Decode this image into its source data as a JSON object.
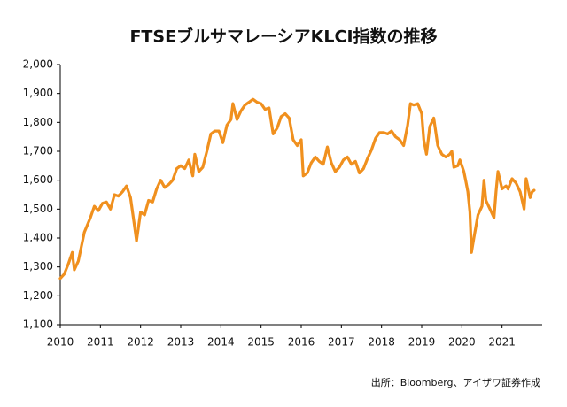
{
  "chart_data": {
    "type": "line",
    "title": "FTSEブルサマレーシアKLCI指数の推移",
    "source": "出所：Bloomberg、アイザワ証券作成",
    "xlim": [
      2010,
      2022
    ],
    "xticks": [
      2010,
      2011,
      2012,
      2013,
      2014,
      2015,
      2016,
      2017,
      2018,
      2019,
      2020,
      2021
    ],
    "ylim": [
      1100,
      2000
    ],
    "yticks": [
      {
        "value": 1100,
        "label": "1,100"
      },
      {
        "value": 1200,
        "label": "1,200"
      },
      {
        "value": 1300,
        "label": "1,300"
      },
      {
        "value": 1400,
        "label": "1,400"
      },
      {
        "value": 1500,
        "label": "1,500"
      },
      {
        "value": 1600,
        "label": "1,600"
      },
      {
        "value": 1700,
        "label": "1,700"
      },
      {
        "value": 1800,
        "label": "1,800"
      },
      {
        "value": 1900,
        "label": "1,900"
      },
      {
        "value": 2000,
        "label": "2,000"
      }
    ],
    "grid": false,
    "x": [
      2010.0,
      2010.1,
      2010.2,
      2010.3,
      2010.35,
      2010.45,
      2010.6,
      2010.75,
      2010.85,
      2010.95,
      2011.05,
      2011.15,
      2011.25,
      2011.35,
      2011.45,
      2011.55,
      2011.65,
      2011.75,
      2011.85,
      2011.9,
      2012.0,
      2012.1,
      2012.2,
      2012.3,
      2012.4,
      2012.5,
      2012.6,
      2012.7,
      2012.8,
      2012.9,
      2013.0,
      2013.1,
      2013.2,
      2013.3,
      2013.35,
      2013.45,
      2013.55,
      2013.65,
      2013.75,
      2013.85,
      2013.95,
      2014.05,
      2014.15,
      2014.25,
      2014.3,
      2014.4,
      2014.5,
      2014.6,
      2014.7,
      2014.8,
      2014.9,
      2015.0,
      2015.1,
      2015.2,
      2015.3,
      2015.4,
      2015.5,
      2015.6,
      2015.7,
      2015.8,
      2015.9,
      2016.0,
      2016.05,
      2016.15,
      2016.25,
      2016.35,
      2016.45,
      2016.55,
      2016.65,
      2016.75,
      2016.85,
      2016.95,
      2017.05,
      2017.15,
      2017.25,
      2017.35,
      2017.45,
      2017.55,
      2017.65,
      2017.75,
      2017.85,
      2017.95,
      2018.05,
      2018.15,
      2018.25,
      2018.35,
      2018.45,
      2018.55,
      2018.65,
      2018.72,
      2018.8,
      2018.9,
      2019.0,
      2019.05,
      2019.12,
      2019.2,
      2019.3,
      2019.4,
      2019.5,
      2019.6,
      2019.7,
      2019.75,
      2019.8,
      2019.9,
      2019.95,
      2020.05,
      2020.1,
      2020.15,
      2020.2,
      2020.24,
      2020.3,
      2020.4,
      2020.5,
      2020.55,
      2020.6,
      2020.7,
      2020.8,
      2020.85,
      2020.9,
      2021.0,
      2021.1,
      2021.15,
      2021.25,
      2021.35,
      2021.45,
      2021.55,
      2021.6,
      2021.7,
      2021.75,
      2021.8
    ],
    "series": [
      {
        "name": "FTSEブルサマレーシアKLCI指数",
        "color": "#f0901e",
        "values": [
          1260,
          1275,
          1310,
          1350,
          1290,
          1320,
          1420,
          1470,
          1510,
          1495,
          1520,
          1525,
          1500,
          1550,
          1545,
          1560,
          1580,
          1540,
          1440,
          1390,
          1490,
          1480,
          1530,
          1525,
          1570,
          1600,
          1575,
          1585,
          1600,
          1640,
          1650,
          1640,
          1670,
          1615,
          1690,
          1630,
          1645,
          1700,
          1760,
          1770,
          1770,
          1730,
          1790,
          1810,
          1865,
          1810,
          1840,
          1860,
          1870,
          1880,
          1870,
          1865,
          1845,
          1850,
          1760,
          1780,
          1820,
          1830,
          1815,
          1740,
          1720,
          1740,
          1615,
          1625,
          1660,
          1680,
          1665,
          1655,
          1715,
          1660,
          1630,
          1645,
          1670,
          1680,
          1655,
          1665,
          1625,
          1640,
          1675,
          1705,
          1745,
          1765,
          1765,
          1760,
          1770,
          1750,
          1740,
          1720,
          1790,
          1865,
          1860,
          1865,
          1830,
          1740,
          1690,
          1785,
          1815,
          1720,
          1690,
          1680,
          1690,
          1700,
          1645,
          1650,
          1670,
          1630,
          1595,
          1560,
          1490,
          1350,
          1400,
          1480,
          1510,
          1600,
          1530,
          1500,
          1470,
          1560,
          1630,
          1570,
          1580,
          1570,
          1605,
          1590,
          1560,
          1500,
          1605,
          1540,
          1560,
          1565
        ]
      }
    ]
  }
}
